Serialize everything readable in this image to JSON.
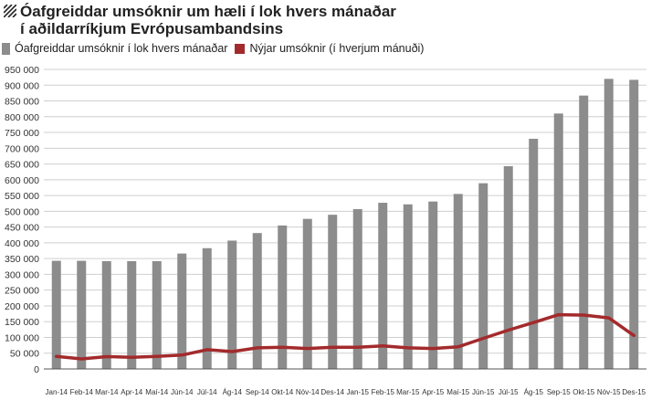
{
  "title": {
    "line1": "Óafgreiddar umsóknir um hæli í lok hvers mánaðar",
    "line2": "í aðildarríkjum Evrópusambandsins"
  },
  "legend": {
    "bars": "Óafgreiddar umsóknir í lok hvers mánaðar",
    "line": "Nýjar umsóknir (í hverjum mánuði)"
  },
  "colors": {
    "bars": "#8c8c8c",
    "line": "#a32a2c",
    "grid": "#cfcfcf"
  },
  "chart_data": {
    "type": "bar",
    "categories": [
      "Jan-14",
      "Feb-14",
      "Mar-14",
      "Apr-14",
      "Maí-14",
      "Jún-14",
      "Júl-14",
      "Ág-14",
      "Sep-14",
      "Okt-14",
      "Nóv-14",
      "Des-14",
      "Jan-15",
      "Feb-15",
      "Mar-15",
      "Apr-15",
      "Maí-15",
      "Jún-15",
      "Júl-15",
      "Ág-15",
      "Sep-15",
      "Okt-15",
      "Nóv-15",
      "Des-15"
    ],
    "series": [
      {
        "name": "Óafgreiddar umsóknir í lok hvers mánaðar",
        "type": "bar",
        "values": [
          343000,
          343000,
          342000,
          342000,
          342000,
          366000,
          383000,
          407000,
          431000,
          455000,
          476000,
          489000,
          507000,
          527000,
          522000,
          531000,
          555000,
          589000,
          643000,
          730000,
          810000,
          867000,
          920000,
          917000
        ]
      },
      {
        "name": "Nýjar umsóknir (í hverjum mánuði)",
        "type": "line",
        "values": [
          40000,
          32000,
          39000,
          37000,
          40000,
          44000,
          61000,
          55000,
          67000,
          69000,
          65000,
          69000,
          69000,
          73000,
          67000,
          65000,
          70000,
          97000,
          123000,
          147000,
          172000,
          171000,
          162000,
          106000
        ]
      }
    ],
    "yticks": [
      "0",
      "50 000",
      "100 000",
      "150 000",
      "200 000",
      "250 000",
      "300 000",
      "350 000",
      "400 000",
      "450 000",
      "500 000",
      "550 000",
      "600 000",
      "650 000",
      "700 000",
      "750 000",
      "800 000",
      "850 000",
      "900 000",
      "950 000"
    ],
    "ylim": [
      0,
      950000
    ],
    "grid": true,
    "legend_position": "top-left"
  }
}
